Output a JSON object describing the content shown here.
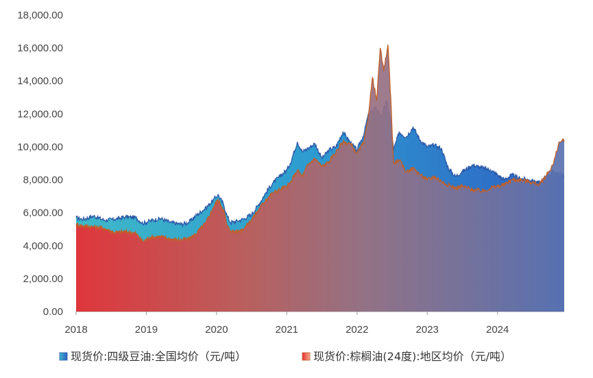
{
  "chart_data": {
    "type": "area",
    "title": "",
    "xlabel": "",
    "ylabel": "",
    "ylim": [
      0,
      18000
    ],
    "xlim": [
      2018.0,
      2024.95
    ],
    "y_ticks": [
      "0.00",
      "2,000.00",
      "4,000.00",
      "6,000.00",
      "8,000.00",
      "10,000.00",
      "12,000.00",
      "14,000.00",
      "16,000.00",
      "18,000.00"
    ],
    "x_ticks": [
      "2018",
      "2019",
      "2020",
      "2021",
      "2022",
      "2023",
      "2024"
    ],
    "grid": false,
    "legend_position": "bottom",
    "series": [
      {
        "name": "现货价:四级豆油:全国均价（元/吨）",
        "color": "#2e7fc0",
        "points": [
          [
            2018.0,
            5700
          ],
          [
            2018.1,
            5600
          ],
          [
            2018.25,
            5800
          ],
          [
            2018.4,
            5550
          ],
          [
            2018.55,
            5600
          ],
          [
            2018.7,
            5750
          ],
          [
            2018.85,
            5700
          ],
          [
            2018.95,
            5350
          ],
          [
            2019.05,
            5500
          ],
          [
            2019.2,
            5650
          ],
          [
            2019.35,
            5400
          ],
          [
            2019.5,
            5300
          ],
          [
            2019.6,
            5400
          ],
          [
            2019.7,
            5800
          ],
          [
            2019.85,
            6300
          ],
          [
            2019.95,
            6750
          ],
          [
            2020.02,
            7100
          ],
          [
            2020.1,
            6500
          ],
          [
            2020.15,
            5800
          ],
          [
            2020.2,
            5400
          ],
          [
            2020.3,
            5500
          ],
          [
            2020.4,
            5650
          ],
          [
            2020.5,
            5900
          ],
          [
            2020.6,
            6500
          ],
          [
            2020.7,
            7200
          ],
          [
            2020.8,
            7800
          ],
          [
            2020.9,
            8200
          ],
          [
            2021.0,
            8600
          ],
          [
            2021.05,
            9000
          ],
          [
            2021.15,
            10300
          ],
          [
            2021.22,
            9700
          ],
          [
            2021.3,
            9900
          ],
          [
            2021.4,
            10200
          ],
          [
            2021.5,
            9300
          ],
          [
            2021.6,
            9800
          ],
          [
            2021.7,
            10000
          ],
          [
            2021.8,
            10900
          ],
          [
            2021.9,
            10300
          ],
          [
            2022.0,
            9800
          ],
          [
            2022.1,
            10800
          ],
          [
            2022.15,
            11800
          ],
          [
            2022.25,
            12400
          ],
          [
            2022.35,
            11900
          ],
          [
            2022.42,
            12800
          ],
          [
            2022.48,
            11500
          ],
          [
            2022.52,
            9800
          ],
          [
            2022.6,
            10900
          ],
          [
            2022.7,
            10600
          ],
          [
            2022.8,
            11200
          ],
          [
            2022.9,
            10400
          ],
          [
            2023.0,
            10000
          ],
          [
            2023.1,
            10100
          ],
          [
            2023.2,
            9900
          ],
          [
            2023.3,
            8700
          ],
          [
            2023.4,
            8200
          ],
          [
            2023.5,
            8500
          ],
          [
            2023.65,
            8900
          ],
          [
            2023.8,
            8700
          ],
          [
            2023.9,
            8600
          ],
          [
            2024.0,
            8300
          ],
          [
            2024.1,
            8000
          ],
          [
            2024.2,
            8300
          ],
          [
            2024.3,
            8100
          ],
          [
            2024.45,
            8000
          ],
          [
            2024.6,
            7800
          ],
          [
            2024.7,
            8200
          ],
          [
            2024.8,
            8500
          ],
          [
            2024.87,
            8400
          ],
          [
            2024.95,
            8200
          ]
        ]
      },
      {
        "name": "现货价:棕榈油(24度):地区均价（元/吨）",
        "color": "#f08060",
        "points": [
          [
            2018.0,
            5300
          ],
          [
            2018.1,
            5200
          ],
          [
            2018.25,
            5150
          ],
          [
            2018.4,
            5050
          ],
          [
            2018.55,
            4800
          ],
          [
            2018.7,
            4850
          ],
          [
            2018.85,
            4750
          ],
          [
            2018.95,
            4250
          ],
          [
            2019.05,
            4500
          ],
          [
            2019.2,
            4550
          ],
          [
            2019.35,
            4400
          ],
          [
            2019.5,
            4350
          ],
          [
            2019.6,
            4400
          ],
          [
            2019.7,
            4700
          ],
          [
            2019.85,
            5400
          ],
          [
            2019.95,
            6300
          ],
          [
            2020.02,
            6800
          ],
          [
            2020.1,
            6200
          ],
          [
            2020.15,
            5200
          ],
          [
            2020.2,
            4900
          ],
          [
            2020.3,
            4850
          ],
          [
            2020.4,
            5100
          ],
          [
            2020.5,
            5600
          ],
          [
            2020.6,
            6200
          ],
          [
            2020.7,
            6800
          ],
          [
            2020.8,
            7200
          ],
          [
            2020.9,
            7400
          ],
          [
            2021.0,
            7600
          ],
          [
            2021.05,
            7800
          ],
          [
            2021.15,
            8600
          ],
          [
            2021.22,
            8200
          ],
          [
            2021.3,
            8900
          ],
          [
            2021.4,
            9300
          ],
          [
            2021.5,
            8800
          ],
          [
            2021.6,
            9100
          ],
          [
            2021.7,
            9700
          ],
          [
            2021.8,
            10300
          ],
          [
            2021.9,
            10200
          ],
          [
            2022.0,
            9600
          ],
          [
            2022.1,
            10300
          ],
          [
            2022.15,
            11500
          ],
          [
            2022.22,
            14200
          ],
          [
            2022.28,
            12800
          ],
          [
            2022.33,
            16000
          ],
          [
            2022.38,
            14600
          ],
          [
            2022.44,
            16200
          ],
          [
            2022.48,
            13000
          ],
          [
            2022.52,
            9000
          ],
          [
            2022.6,
            9200
          ],
          [
            2022.7,
            8500
          ],
          [
            2022.8,
            8700
          ],
          [
            2022.9,
            8300
          ],
          [
            2023.0,
            8000
          ],
          [
            2023.1,
            8200
          ],
          [
            2023.2,
            7900
          ],
          [
            2023.3,
            7700
          ],
          [
            2023.4,
            7500
          ],
          [
            2023.5,
            7600
          ],
          [
            2023.65,
            7400
          ],
          [
            2023.8,
            7300
          ],
          [
            2023.9,
            7500
          ],
          [
            2024.0,
            7600
          ],
          [
            2024.1,
            7700
          ],
          [
            2024.2,
            8000
          ],
          [
            2024.3,
            8000
          ],
          [
            2024.45,
            7900
          ],
          [
            2024.6,
            7700
          ],
          [
            2024.7,
            8300
          ],
          [
            2024.8,
            9000
          ],
          [
            2024.87,
            10200
          ],
          [
            2024.92,
            10400
          ],
          [
            2024.95,
            10300
          ]
        ]
      }
    ]
  }
}
